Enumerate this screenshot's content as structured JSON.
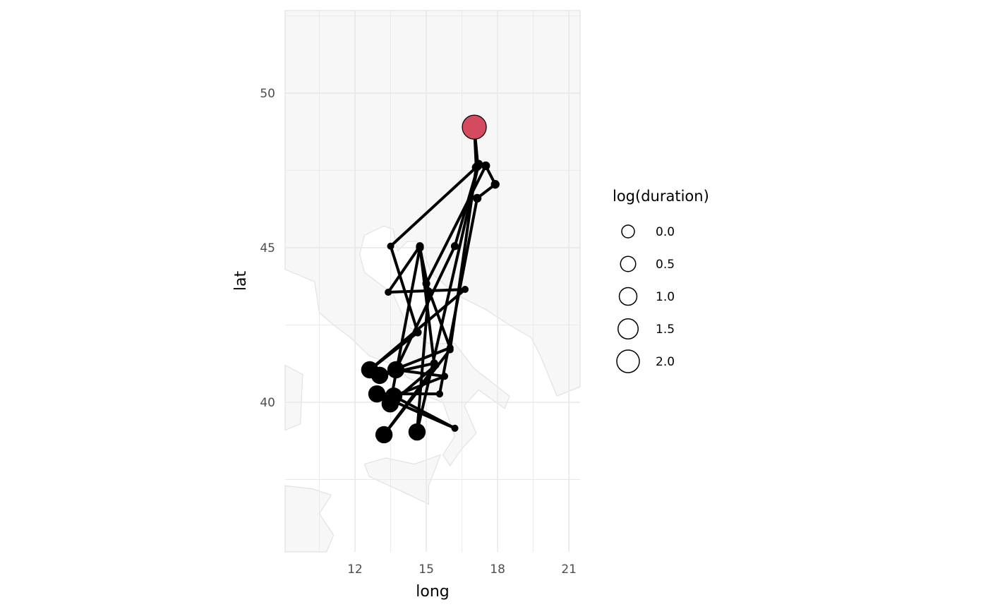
{
  "chart_data": {
    "type": "map-path",
    "xlabel": "long",
    "ylabel": "lat",
    "xlim": [
      9.06,
      21.47
    ],
    "ylim": [
      35.16,
      52.67
    ],
    "x_ticks": [
      "12",
      "15",
      "18",
      "21"
    ],
    "y_ticks": [
      "40",
      "45",
      "50"
    ],
    "x_tick_values": [
      12,
      15,
      18,
      21
    ],
    "y_tick_values": [
      40,
      45,
      50
    ],
    "grid": true,
    "legend": {
      "title": "log(duration)",
      "placement": "right",
      "labels": [
        "0.0",
        "0.5",
        "1.0",
        "1.5",
        "2.0"
      ],
      "values": [
        0,
        0.5,
        1.0,
        1.5,
        2.0
      ]
    },
    "colors": {
      "path": "#000000",
      "highlight": "#d44a5e",
      "land": "#f7f7f7",
      "border": "#e2e2e2",
      "grid": "#e8e8e8"
    },
    "highlight_point": {
      "long": 17.02,
      "lat": 48.9,
      "log_duration": 2.1
    },
    "points": [
      {
        "long": 17.02,
        "lat": 48.9,
        "log_duration": 2.1
      },
      {
        "long": 17.17,
        "lat": 47.65,
        "log_duration": 0.3
      },
      {
        "long": 13.5,
        "lat": 45.05,
        "log_duration": 0.1
      },
      {
        "long": 14.64,
        "lat": 42.26,
        "log_duration": 0.2
      },
      {
        "long": 12.62,
        "lat": 41.05,
        "log_duration": 1.4
      },
      {
        "long": 16.63,
        "lat": 43.65,
        "log_duration": 0.1
      },
      {
        "long": 13.4,
        "lat": 43.56,
        "log_duration": 0.1
      },
      {
        "long": 14.73,
        "lat": 45.05,
        "log_duration": 0.2
      },
      {
        "long": 15.33,
        "lat": 41.26,
        "log_duration": 0.2
      },
      {
        "long": 13.04,
        "lat": 40.87,
        "log_duration": 1.4
      },
      {
        "long": 16.0,
        "lat": 41.76,
        "log_duration": 0.1
      },
      {
        "long": 15.0,
        "lat": 43.84,
        "log_duration": 0.2
      },
      {
        "long": 17.5,
        "lat": 47.65,
        "log_duration": 0.3
      },
      {
        "long": 17.9,
        "lat": 47.05,
        "log_duration": 0.3
      },
      {
        "long": 17.14,
        "lat": 46.6,
        "log_duration": 0.3
      },
      {
        "long": 15.56,
        "lat": 40.27,
        "log_duration": 0.1
      },
      {
        "long": 12.92,
        "lat": 40.27,
        "log_duration": 1.4
      },
      {
        "long": 16.2,
        "lat": 39.16,
        "log_duration": 0.1
      },
      {
        "long": 13.63,
        "lat": 40.2,
        "log_duration": 1.4
      },
      {
        "long": 15.77,
        "lat": 40.84,
        "log_duration": 0.1
      },
      {
        "long": 13.72,
        "lat": 41.05,
        "log_duration": 1.4
      },
      {
        "long": 16.2,
        "lat": 45.05,
        "log_duration": 0.2
      },
      {
        "long": 17.2,
        "lat": 47.7,
        "log_duration": 0.3
      },
      {
        "long": 14.61,
        "lat": 39.04,
        "log_duration": 1.4
      },
      {
        "long": 15.1,
        "lat": 43.6,
        "log_duration": 0.1
      },
      {
        "long": 14.73,
        "lat": 45.0,
        "log_duration": 0.2
      },
      {
        "long": 13.48,
        "lat": 39.95,
        "log_duration": 1.4
      },
      {
        "long": 15.4,
        "lat": 41.2,
        "log_duration": 0.1
      },
      {
        "long": 13.22,
        "lat": 38.95,
        "log_duration": 1.4
      },
      {
        "long": 16.0,
        "lat": 41.7,
        "log_duration": 0.1
      },
      {
        "long": 17.1,
        "lat": 47.6,
        "log_duration": 0.3
      },
      {
        "long": 17.02,
        "lat": 48.9,
        "log_duration": 2.1
      }
    ]
  }
}
